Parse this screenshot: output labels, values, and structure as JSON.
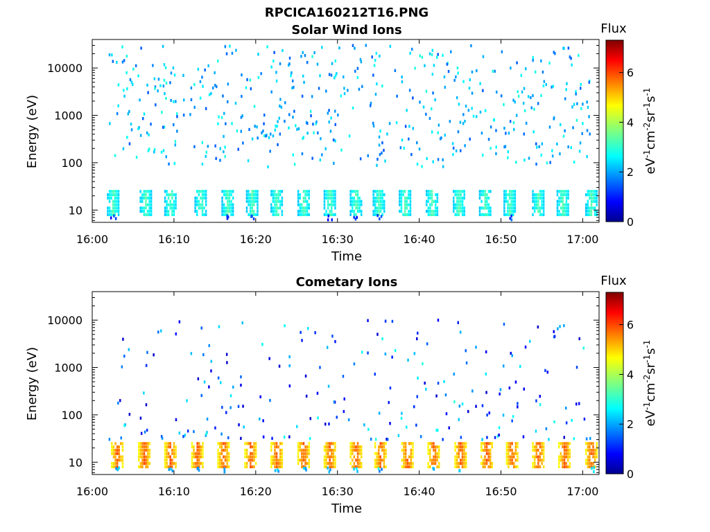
{
  "figure_title": "RPCICA160212T16.PNG",
  "chart_data": [
    {
      "type": "heatmap",
      "title": "Solar Wind Ions",
      "xlabel": "Time",
      "ylabel": "Energy (eV)",
      "x_range": [
        "16:00",
        "17:02"
      ],
      "x_ticks": [
        "16:00",
        "16:10",
        "16:20",
        "16:30",
        "16:40",
        "16:50",
        "17:00"
      ],
      "y_scale": "log",
      "y_range": [
        5.5,
        40000
      ],
      "y_ticks": [
        "10",
        "100",
        "1000",
        "10000"
      ],
      "colorbar": {
        "title": "Flux",
        "label": "eV-1cm-2sr-1s-1",
        "range": [
          0,
          7.3
        ],
        "ticks": [
          "0",
          "2",
          "4",
          "6"
        ]
      },
      "low_energy_bands": {
        "approx_energy_eV": [
          8,
          25
        ],
        "approx_flux_range": [
          1.5,
          3.5
        ],
        "times_min": [
          2.5,
          6.5,
          9.5,
          13.2,
          16.5,
          19.5,
          22.5,
          25.8,
          29,
          32.2,
          35,
          38.2,
          41.5,
          44.8,
          48,
          51,
          54.5,
          57.5,
          61
        ]
      },
      "scattered_counts": {
        "energy_range_eV": [
          80,
          30000
        ],
        "approx_flux_range": [
          1.5,
          3.0
        ]
      }
    },
    {
      "type": "heatmap",
      "title": "Cometary Ions",
      "xlabel": "Time",
      "ylabel": "Energy (eV)",
      "x_range": [
        "16:00",
        "17:02"
      ],
      "x_ticks": [
        "16:00",
        "16:10",
        "16:20",
        "16:30",
        "16:40",
        "16:50",
        "17:00"
      ],
      "y_scale": "log",
      "y_range": [
        5.5,
        40000
      ],
      "y_ticks": [
        "10",
        "100",
        "1000",
        "10000"
      ],
      "colorbar": {
        "title": "Flux",
        "label": "eV-1cm-2sr-1s-1",
        "range": [
          0,
          7.3
        ],
        "ticks": [
          "0",
          "2",
          "4",
          "6"
        ]
      },
      "low_energy_bands": {
        "approx_energy_eV": [
          8,
          28
        ],
        "approx_flux_range": [
          3.5,
          6.0
        ],
        "times_min": [
          3,
          6.3,
          9.5,
          12.8,
          16,
          19.3,
          22.5,
          25.8,
          29,
          32.2,
          35.2,
          38.5,
          41.7,
          45,
          48.2,
          51.3,
          54.5,
          57.7,
          61
        ]
      },
      "scattered_counts": {
        "energy_range_eV": [
          30,
          10000
        ],
        "approx_flux_range": [
          0.5,
          3.0
        ]
      }
    }
  ]
}
